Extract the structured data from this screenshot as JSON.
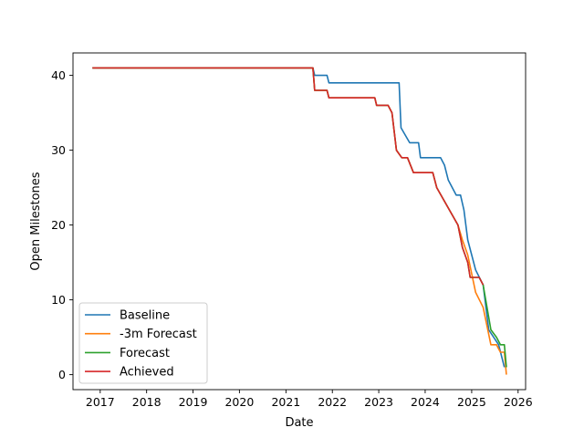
{
  "chart_data": {
    "type": "line",
    "xlabel": "Date",
    "ylabel": "Open Milestones",
    "xlim": [
      "2016-06-01",
      "2026-03-01"
    ],
    "ylim": [
      -2,
      43
    ],
    "xticks": [
      {
        "date": "2017-01-01",
        "label": "2017"
      },
      {
        "date": "2018-01-01",
        "label": "2018"
      },
      {
        "date": "2019-01-01",
        "label": "2019"
      },
      {
        "date": "2020-01-01",
        "label": "2020"
      },
      {
        "date": "2021-01-01",
        "label": "2021"
      },
      {
        "date": "2022-01-01",
        "label": "2022"
      },
      {
        "date": "2023-01-01",
        "label": "2023"
      },
      {
        "date": "2024-01-01",
        "label": "2024"
      },
      {
        "date": "2025-01-01",
        "label": "2025"
      },
      {
        "date": "2026-01-01",
        "label": "2026"
      }
    ],
    "yticks": [
      0,
      10,
      20,
      30,
      40
    ],
    "grid": false,
    "legend_position": "lower-left",
    "series": [
      {
        "name": "Baseline",
        "color": "#1f77b4",
        "points": [
          [
            "2016-11-01",
            41
          ],
          [
            "2021-08-01",
            41
          ],
          [
            "2021-08-15",
            40
          ],
          [
            "2021-11-20",
            40
          ],
          [
            "2021-12-05",
            39
          ],
          [
            "2023-06-10",
            39
          ],
          [
            "2023-06-25",
            33
          ],
          [
            "2023-09-01",
            31
          ],
          [
            "2023-11-10",
            31
          ],
          [
            "2023-11-25",
            29
          ],
          [
            "2024-05-01",
            29
          ],
          [
            "2024-06-01",
            28
          ],
          [
            "2024-07-01",
            26
          ],
          [
            "2024-09-01",
            24
          ],
          [
            "2024-10-05",
            24
          ],
          [
            "2024-11-01",
            22
          ],
          [
            "2024-12-01",
            18
          ],
          [
            "2025-02-01",
            14
          ],
          [
            "2025-04-01",
            12
          ],
          [
            "2025-05-15",
            6
          ],
          [
            "2025-08-01",
            4
          ],
          [
            "2025-09-15",
            1
          ]
        ]
      },
      {
        "name": "-3m Forecast",
        "color": "#ff7f0e",
        "points": [
          [
            "2016-11-01",
            41
          ],
          [
            "2021-08-01",
            41
          ],
          [
            "2021-08-15",
            38
          ],
          [
            "2021-11-20",
            38
          ],
          [
            "2021-12-05",
            37
          ],
          [
            "2022-12-01",
            37
          ],
          [
            "2022-12-15",
            36
          ],
          [
            "2023-03-15",
            36
          ],
          [
            "2023-04-15",
            35
          ],
          [
            "2023-05-20",
            30
          ],
          [
            "2023-07-01",
            29
          ],
          [
            "2023-08-15",
            29
          ],
          [
            "2023-10-01",
            27
          ],
          [
            "2024-03-01",
            27
          ],
          [
            "2024-04-01",
            25
          ],
          [
            "2024-09-15",
            20
          ],
          [
            "2024-10-20",
            18
          ],
          [
            "2024-12-01",
            16
          ],
          [
            "2025-02-01",
            11
          ],
          [
            "2025-04-01",
            9
          ],
          [
            "2025-06-01",
            4
          ],
          [
            "2025-07-15",
            4
          ],
          [
            "2025-08-15",
            3
          ],
          [
            "2025-09-15",
            3
          ],
          [
            "2025-10-01",
            0
          ]
        ]
      },
      {
        "name": "Forecast",
        "color": "#2ca02c",
        "points": [
          [
            "2016-11-01",
            41
          ],
          [
            "2021-08-01",
            41
          ],
          [
            "2021-08-15",
            38
          ],
          [
            "2021-11-20",
            38
          ],
          [
            "2021-12-05",
            37
          ],
          [
            "2022-12-01",
            37
          ],
          [
            "2022-12-15",
            36
          ],
          [
            "2023-03-15",
            36
          ],
          [
            "2023-04-15",
            35
          ],
          [
            "2023-05-20",
            30
          ],
          [
            "2023-07-01",
            29
          ],
          [
            "2023-08-15",
            29
          ],
          [
            "2023-10-01",
            27
          ],
          [
            "2024-03-01",
            27
          ],
          [
            "2024-04-01",
            25
          ],
          [
            "2024-09-15",
            20
          ],
          [
            "2024-10-20",
            17
          ],
          [
            "2024-12-01",
            15
          ],
          [
            "2024-12-20",
            13
          ],
          [
            "2025-03-01",
            13
          ],
          [
            "2025-04-01",
            12
          ],
          [
            "2025-06-01",
            6
          ],
          [
            "2025-07-15",
            5
          ],
          [
            "2025-08-15",
            4
          ],
          [
            "2025-09-15",
            4
          ],
          [
            "2025-10-01",
            1
          ]
        ]
      },
      {
        "name": "Achieved",
        "color": "#d62728",
        "points": [
          [
            "2016-11-01",
            41
          ],
          [
            "2021-08-01",
            41
          ],
          [
            "2021-08-15",
            38
          ],
          [
            "2021-11-20",
            38
          ],
          [
            "2021-12-05",
            37
          ],
          [
            "2022-12-01",
            37
          ],
          [
            "2022-12-15",
            36
          ],
          [
            "2023-03-15",
            36
          ],
          [
            "2023-04-15",
            35
          ],
          [
            "2023-05-20",
            30
          ],
          [
            "2023-07-01",
            29
          ],
          [
            "2023-08-15",
            29
          ],
          [
            "2023-10-01",
            27
          ],
          [
            "2024-03-01",
            27
          ],
          [
            "2024-04-01",
            25
          ],
          [
            "2024-09-15",
            20
          ],
          [
            "2024-10-20",
            17
          ],
          [
            "2024-12-01",
            15
          ],
          [
            "2024-12-20",
            13
          ],
          [
            "2025-03-01",
            13
          ],
          [
            "2025-04-01",
            12
          ]
        ]
      }
    ]
  }
}
